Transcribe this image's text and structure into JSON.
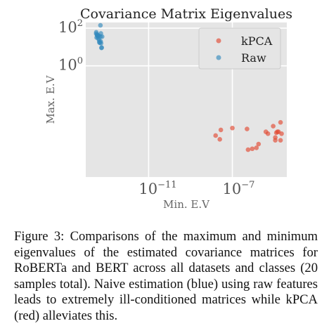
{
  "chart_data": {
    "type": "scatter",
    "title": "Covariance Matrix Eigenvalues",
    "xlabel": "Min. E.V",
    "ylabel": "Max. E.V",
    "xscale": "log",
    "yscale": "log",
    "xlim_log10": [
      -14,
      -4.4
    ],
    "ylim_log10": [
      -5.9,
      2.3
    ],
    "xticks": [
      {
        "base": "10",
        "exp": "−11",
        "value": -11
      },
      {
        "base": "10",
        "exp": "−7",
        "value": -7
      }
    ],
    "yticks": [
      {
        "base": "10",
        "exp": "2",
        "value": 2
      },
      {
        "base": "10",
        "exp": "0",
        "value": 0
      }
    ],
    "grid": true,
    "legend_position": "top-right",
    "series": [
      {
        "name": "kPCA",
        "color": "#e24a33",
        "points_log10": [
          [
            -7.6,
            -3.9
          ],
          [
            -7.8,
            -3.7
          ],
          [
            -7.55,
            -3.4
          ],
          [
            -7.0,
            -3.3
          ],
          [
            -6.3,
            -3.35
          ],
          [
            -5.3,
            -3.6
          ],
          [
            -4.7,
            -3.0
          ],
          [
            -4.8,
            -3.5
          ],
          [
            -5.05,
            -3.2
          ],
          [
            -5.4,
            -3.5
          ],
          [
            -5.75,
            -4.15
          ],
          [
            -4.65,
            -3.6
          ],
          [
            -4.7,
            -3.95
          ],
          [
            -4.95,
            -3.95
          ],
          [
            -6.05,
            -4.4
          ],
          [
            -6.25,
            -4.45
          ],
          [
            -4.9,
            -3.55
          ],
          [
            -4.85,
            -3.5
          ],
          [
            -4.95,
            -3.8
          ],
          [
            -5.85,
            -4.35
          ]
        ]
      },
      {
        "name": "Raw",
        "color": "#348abd",
        "points_log10": [
          [
            -13.3,
            2.15
          ],
          [
            -13.5,
            1.78
          ],
          [
            -13.42,
            1.6
          ],
          [
            -13.35,
            1.25
          ],
          [
            -13.25,
            0.95
          ],
          [
            -13.48,
            1.5
          ],
          [
            -13.28,
            1.72
          ],
          [
            -13.45,
            1.62
          ],
          [
            -13.22,
            1.55
          ],
          [
            -13.33,
            1.22
          ],
          [
            -13.24,
            0.97
          ],
          [
            -13.4,
            1.45
          ],
          [
            -13.36,
            1.35
          ],
          [
            -13.3,
            1.55
          ],
          [
            -13.5,
            1.7
          ],
          [
            -13.27,
            1.2
          ],
          [
            -13.43,
            1.55
          ],
          [
            -13.38,
            1.6
          ],
          [
            -13.29,
            1.3
          ],
          [
            -13.46,
            1.65
          ]
        ]
      }
    ]
  },
  "caption": "Figure 3: Comparisons of the maximum and minimum eigenvalues of the estimated covariance matrices for RoBERTa and BERT across all datasets and classes (20 samples total). Naive estimation (blue) using raw features leads to extremely ill-conditioned matrices while kPCA (red) alleviates this."
}
